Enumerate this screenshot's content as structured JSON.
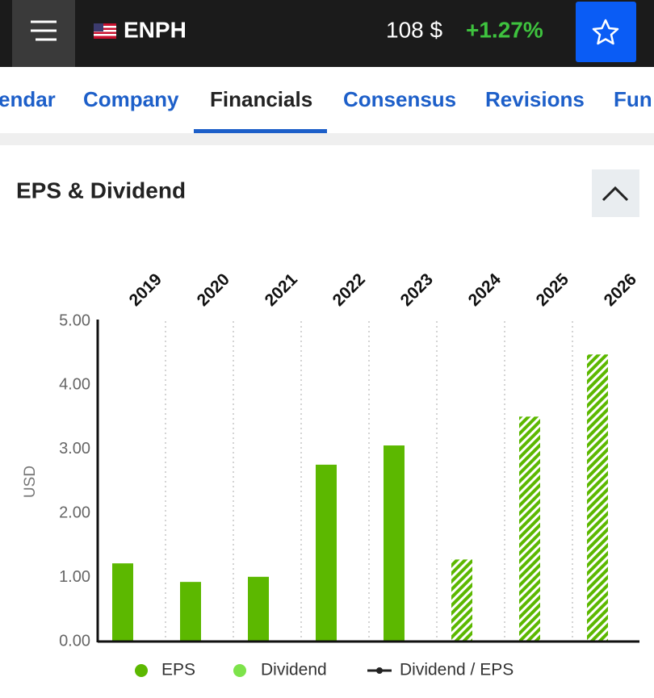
{
  "header": {
    "ticker": "ENPH",
    "price": "108 $",
    "change": "+1.27%"
  },
  "tabs": [
    "endar",
    "Company",
    "Financials",
    "Consensus",
    "Revisions",
    "Fun"
  ],
  "chart_data": {
    "type": "bar",
    "title": "EPS & Dividend",
    "y_label": "USD",
    "categories": [
      "2019",
      "2020",
      "2021",
      "2022",
      "2023",
      "2024",
      "2025",
      "2026"
    ],
    "series": [
      {
        "name": "EPS",
        "color": "#5cb800",
        "values": [
          1.22,
          0.93,
          1.01,
          2.76,
          3.06,
          1.28,
          3.51,
          4.48
        ],
        "hatched": [
          false,
          false,
          false,
          false,
          false,
          true,
          true,
          true
        ]
      },
      {
        "name": "Dividend",
        "color": "#7de34a",
        "values": [
          null,
          null,
          null,
          null,
          null,
          null,
          null,
          null
        ]
      },
      {
        "name": "Dividend / EPS",
        "color": "#222222",
        "values": [
          null,
          null,
          null,
          null,
          null,
          null,
          null,
          null
        ]
      }
    ],
    "ylim": [
      0,
      5
    ],
    "yticks": [
      {
        "value": 0,
        "label": "0.00"
      },
      {
        "value": 1,
        "label": "1.00"
      },
      {
        "value": 2,
        "label": "2.00"
      },
      {
        "value": 3,
        "label": "3.00"
      },
      {
        "value": 4,
        "label": "4.00"
      },
      {
        "value": 5,
        "label": "5.00"
      }
    ]
  }
}
